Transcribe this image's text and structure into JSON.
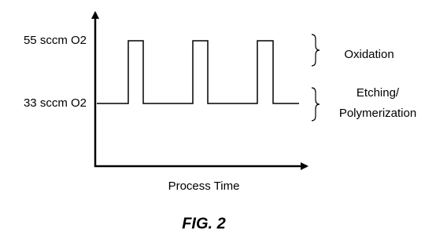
{
  "levels": {
    "high": "55 sccm O2",
    "low": "33 sccm O2"
  },
  "x_axis_label": "Process Time",
  "phases": [
    {
      "lines": [
        "Oxidation"
      ]
    },
    {
      "lines": [
        "Etching/",
        "Polymerization"
      ]
    }
  ],
  "caption": "FIG. 2"
}
